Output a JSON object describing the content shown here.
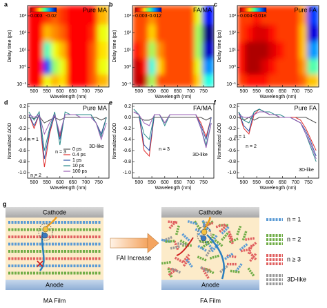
{
  "chart_data": [
    {
      "type": "heatmap",
      "panel": "a",
      "title": "Pure MA",
      "x_label": "Wavelength (nm)",
      "y_label": "Delay time (ps)",
      "x": [
        490,
        520,
        550,
        580,
        610,
        640,
        670,
        700,
        730,
        760
      ],
      "y": [
        0.15,
        1,
        10,
        100,
        1000
      ],
      "z": [
        [
          0,
          0,
          -0.006,
          -0.004,
          -0.005,
          0,
          0,
          0,
          -0.002,
          -0.004
        ],
        [
          0,
          0,
          -0.016,
          -0.008,
          -0.006,
          0,
          0,
          0,
          -0.002,
          -0.006
        ],
        [
          0,
          0,
          -0.01,
          -0.006,
          -0.004,
          0,
          0,
          0,
          -0.002,
          -0.005
        ],
        [
          0,
          0,
          -0.004,
          -0.003,
          -0.002,
          0,
          0,
          0,
          -0.001,
          -0.006
        ],
        [
          0,
          0,
          -0.001,
          -0.002,
          -0.001,
          0,
          0,
          0,
          0,
          -0.004
        ]
      ],
      "xlim": [
        475,
        790
      ],
      "ylim": [
        0.07,
        4000
      ],
      "log_y": true,
      "xticks": [
        500,
        550,
        600,
        650,
        700,
        750
      ],
      "yticks": [
        {
          "value": 0.1,
          "label": "10⁻¹"
        },
        {
          "value": 1,
          "label": "10⁰"
        },
        {
          "value": 10,
          "label": "10¹"
        },
        {
          "value": 100,
          "label": "10²"
        },
        {
          "value": 1000,
          "label": "10³"
        }
      ],
      "zlim": [
        -0.02,
        0.003
      ],
      "colorbar_ticks": [
        0.003,
        -0.02
      ]
    },
    {
      "type": "heatmap",
      "panel": "b",
      "title": "FA/MA",
      "x_label": "Wavelength (nm)",
      "y_label": "Delay time (ps)",
      "x": [
        490,
        520,
        550,
        580,
        610,
        640,
        670,
        700,
        730,
        760
      ],
      "y": [
        0.15,
        1,
        10,
        100,
        1000
      ],
      "z": [
        [
          0.002,
          0.002,
          -0.004,
          0,
          0,
          0,
          0,
          0,
          -0.002,
          -0.006
        ],
        [
          0.002,
          0.001,
          -0.006,
          -0.002,
          0,
          0,
          0,
          0,
          -0.003,
          -0.008
        ],
        [
          0.001,
          0,
          -0.004,
          -0.001,
          0,
          0,
          0,
          0,
          -0.004,
          -0.011
        ],
        [
          0,
          0,
          -0.002,
          0,
          0,
          0,
          0,
          0,
          -0.004,
          -0.012
        ],
        [
          0,
          0,
          -0.001,
          0,
          0,
          0,
          0,
          0,
          -0.003,
          -0.01
        ]
      ],
      "xlim": [
        475,
        790
      ],
      "ylim": [
        0.07,
        4000
      ],
      "log_y": true,
      "xticks": [
        500,
        550,
        600,
        650,
        700,
        750
      ],
      "yticks": [
        {
          "value": 0.1,
          "label": "10⁻¹"
        },
        {
          "value": 1,
          "label": "10⁰"
        },
        {
          "value": 10,
          "label": "10¹"
        },
        {
          "value": 100,
          "label": "10²"
        },
        {
          "value": 1000,
          "label": "10³"
        }
      ],
      "zlim": [
        -0.012,
        0.003
      ],
      "colorbar_ticks": [
        0.003,
        -0.012
      ]
    },
    {
      "type": "heatmap",
      "panel": "c",
      "title": "Pure FA",
      "x_label": "Wavelength (nm)",
      "y_label": "Delay time (ps)",
      "x": [
        490,
        520,
        550,
        580,
        610,
        640,
        670,
        700,
        730,
        760
      ],
      "y": [
        0.15,
        1,
        10,
        100,
        1000
      ],
      "z": [
        [
          0,
          0.001,
          0.001,
          0.001,
          0,
          0,
          0,
          0,
          -0.001,
          -0.003
        ],
        [
          0.001,
          0.003,
          0.003,
          0.002,
          0.001,
          0,
          0,
          0,
          -0.002,
          -0.008
        ],
        [
          0.001,
          0.003,
          0.003,
          0.003,
          0.002,
          0.001,
          0,
          0,
          -0.003,
          -0.012
        ],
        [
          0,
          0.001,
          0.002,
          0.002,
          0.001,
          0,
          0,
          0,
          -0.003,
          -0.016
        ],
        [
          0,
          0,
          0.001,
          0,
          0,
          0,
          0,
          0,
          -0.002,
          -0.014
        ]
      ],
      "xlim": [
        475,
        790
      ],
      "ylim": [
        0.07,
        4000
      ],
      "log_y": true,
      "xticks": [
        500,
        550,
        600,
        650,
        700,
        750
      ],
      "yticks": [
        {
          "value": 0.1,
          "label": "10⁻¹"
        },
        {
          "value": 1,
          "label": "10⁰"
        },
        {
          "value": 10,
          "label": "10¹"
        },
        {
          "value": 100,
          "label": "10²"
        },
        {
          "value": 1000,
          "label": "10³"
        }
      ],
      "zlim": [
        -0.018,
        0.004
      ],
      "colorbar_ticks": [
        0.004,
        -0.018
      ]
    },
    {
      "type": "line",
      "panel": "d",
      "title": "Pure MA",
      "x_label": "Wavelength (nm)",
      "y_label": "Normalized ΔOD",
      "legend": true,
      "x": [
        480,
        500,
        520,
        540,
        560,
        580,
        600,
        620,
        640,
        660,
        680,
        700,
        720,
        740,
        760,
        780
      ],
      "series": [
        {
          "name": "0 ps",
          "color": "#555555",
          "values": [
            0,
            -0.02,
            0.02,
            -0.1,
            -0.05,
            0,
            -0.05,
            0,
            0,
            0,
            0,
            0,
            0,
            0,
            -0.05,
            0
          ]
        },
        {
          "name": "0.4 ps",
          "color": "#e03030",
          "values": [
            0.05,
            -0.2,
            0.05,
            -0.9,
            -0.3,
            0.05,
            -0.35,
            0.05,
            0.05,
            0.05,
            0.05,
            0.05,
            0.05,
            -0.1,
            -0.3,
            0
          ]
        },
        {
          "name": "1 ps",
          "color": "#2f55a8",
          "values": [
            0.05,
            -0.15,
            0.05,
            -0.75,
            -0.25,
            0.05,
            -0.4,
            0.05,
            0.05,
            0.05,
            0.05,
            0.05,
            0.05,
            -0.1,
            -0.3,
            0
          ]
        },
        {
          "name": "10 ps",
          "color": "#2a8a8a",
          "values": [
            0.1,
            -0.05,
            0.1,
            -0.6,
            -0.2,
            0.1,
            -0.5,
            0.1,
            0.05,
            0.05,
            0.05,
            0.05,
            0.05,
            -0.1,
            -0.35,
            0
          ]
        },
        {
          "name": "100 ps",
          "color": "#9a5fb5",
          "values": [
            0.05,
            0,
            0.05,
            -0.3,
            -0.1,
            0.05,
            -0.3,
            0.05,
            0.05,
            0.05,
            0,
            0,
            0,
            -0.1,
            -0.4,
            -0.1
          ]
        }
      ],
      "xlim": [
        475,
        790
      ],
      "ylim": [
        -1.1,
        0.25
      ],
      "xticks": [
        500,
        550,
        600,
        650,
        700,
        750
      ],
      "yticks": [
        {
          "value": -1,
          "label": "-1.0"
        },
        -0.8,
        -0.6,
        -0.4,
        -0.2,
        {
          "value": 0,
          "label": "0.0"
        },
        0.2
      ],
      "annotations": [
        "n = 1",
        "n = 2",
        "n = 3",
        "3D-like"
      ]
    },
    {
      "type": "line",
      "panel": "e",
      "title": "FA/MA",
      "x_label": "Wavelength (nm)",
      "y_label": "Normalized ΔOD",
      "legend": false,
      "x": [
        480,
        500,
        520,
        540,
        560,
        580,
        600,
        620,
        640,
        660,
        680,
        700,
        720,
        740,
        760,
        780
      ],
      "series": [
        {
          "color": "#555555",
          "values": [
            0,
            0,
            -0.05,
            -0.05,
            0,
            0,
            0,
            0,
            0,
            0,
            0,
            0,
            0,
            0,
            -0.05,
            0
          ]
        },
        {
          "color": "#e03030",
          "values": [
            0.1,
            0.05,
            -0.6,
            -0.7,
            0.05,
            0.05,
            -0.1,
            0.05,
            0.05,
            0.05,
            0.05,
            0.05,
            0.05,
            -0.1,
            -0.35,
            0
          ]
        },
        {
          "color": "#2f55a8",
          "values": [
            0.1,
            0.05,
            -0.5,
            -0.6,
            0.05,
            0.05,
            -0.1,
            0.05,
            0.05,
            0.05,
            0.05,
            0.05,
            0.05,
            -0.15,
            -0.4,
            0
          ]
        },
        {
          "color": "#2a8a8a",
          "values": [
            0.15,
            0.05,
            -0.3,
            -0.4,
            0.05,
            0.05,
            -0.15,
            0.05,
            0.05,
            0.05,
            0.05,
            0.05,
            0.05,
            -0.2,
            -0.5,
            -0.1
          ]
        },
        {
          "color": "#9a5fb5",
          "values": [
            0.1,
            0.05,
            -0.1,
            -0.15,
            0.05,
            0.05,
            -0.1,
            0.05,
            0.05,
            0.05,
            0.05,
            0.05,
            0.05,
            -0.2,
            -0.55,
            -0.1
          ]
        }
      ],
      "xlim": [
        475,
        790
      ],
      "ylim": [
        -1.1,
        0.25
      ],
      "xticks": [
        500,
        550,
        600,
        650,
        700,
        750
      ],
      "yticks": [
        {
          "value": -1,
          "label": "-1.0"
        },
        -0.8,
        -0.6,
        -0.4,
        -0.2,
        {
          "value": 0,
          "label": "0.0"
        },
        0.2
      ],
      "annotations": [
        "n = 3",
        "3D-like"
      ]
    },
    {
      "type": "line",
      "panel": "f",
      "title": "Pure FA",
      "x_label": "Wavelength (nm)",
      "y_label": "Normalized ΔOD",
      "legend": false,
      "x": [
        480,
        500,
        520,
        540,
        560,
        580,
        600,
        620,
        640,
        660,
        680,
        700,
        720,
        740,
        760,
        780
      ],
      "series": [
        {
          "color": "#555555",
          "values": [
            0,
            -0.05,
            0,
            -0.05,
            0,
            0,
            0,
            0,
            0,
            0,
            0,
            0,
            0,
            0,
            -0.05,
            -0.1
          ]
        },
        {
          "color": "#e03030",
          "values": [
            0.1,
            -0.2,
            -0.3,
            0.05,
            0.15,
            0.1,
            0.05,
            0.05,
            0,
            0,
            0,
            0,
            -0.05,
            -0.2,
            -0.4,
            -0.6
          ]
        },
        {
          "color": "#2f55a8",
          "values": [
            0.1,
            -0.15,
            -0.25,
            0.1,
            0.15,
            0.1,
            0.05,
            0.05,
            0,
            0,
            0,
            -0.05,
            -0.1,
            -0.25,
            -0.45,
            -0.7
          ]
        },
        {
          "color": "#2a8a8a",
          "values": [
            0.1,
            -0.05,
            -0.1,
            0.1,
            0.15,
            0.1,
            0.1,
            0.05,
            0.05,
            0,
            0,
            -0.05,
            -0.1,
            -0.3,
            -0.55,
            -0.8
          ]
        },
        {
          "color": "#9a5fb5",
          "values": [
            0.05,
            0,
            0,
            0.05,
            0.1,
            0.1,
            0.05,
            0.05,
            0,
            0,
            0,
            -0.05,
            -0.1,
            -0.3,
            -0.5,
            -0.75
          ]
        }
      ],
      "xlim": [
        475,
        790
      ],
      "ylim": [
        -1.1,
        0.25
      ],
      "xticks": [
        500,
        550,
        600,
        650,
        700,
        750
      ],
      "yticks": [
        {
          "value": -1,
          "label": "-1.0"
        },
        -0.8,
        -0.6,
        -0.4,
        -0.2,
        {
          "value": 0,
          "label": "0.0"
        },
        0.2
      ],
      "annotations": [
        "n = 1",
        "n = 2",
        "3D-like"
      ]
    }
  ],
  "diagram": {
    "panel": "g",
    "left": {
      "top": "Cathode",
      "bottom": "Anode",
      "caption": "MA Film"
    },
    "arrow": "FAI Increase",
    "right": {
      "top": "Cathode",
      "bottom": "Anode",
      "caption": "FA Film"
    },
    "legend": [
      "n = 1",
      "n = 2",
      "n ≥ 3",
      "3D-like"
    ]
  }
}
